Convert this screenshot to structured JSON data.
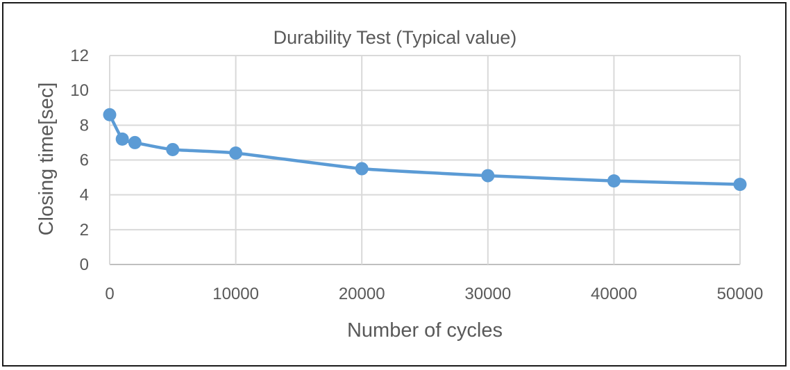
{
  "chart_data": {
    "type": "line",
    "title": "Durability Test (Typical value)",
    "xlabel": "Number of cycles",
    "ylabel": "Closing time[sec]",
    "xlim": [
      0,
      50000
    ],
    "ylim": [
      0,
      12
    ],
    "x_ticks": [
      0,
      10000,
      20000,
      30000,
      40000,
      50000
    ],
    "x_tick_labels": [
      "0",
      "10000",
      "20000",
      "30000",
      "40000",
      "50000"
    ],
    "y_ticks": [
      0,
      2,
      4,
      6,
      8,
      10,
      12
    ],
    "y_tick_labels": [
      "0",
      "2",
      "4",
      "6",
      "8",
      "10",
      "12"
    ],
    "grid": true,
    "legend": "none",
    "series": [
      {
        "color": "#5b9bd5",
        "smooth": true,
        "markers": true,
        "x": [
          0,
          1000,
          2000,
          5000,
          10000,
          20000,
          30000,
          40000,
          50000
        ],
        "y": [
          8.6,
          7.2,
          7.0,
          6.6,
          6.4,
          5.5,
          5.1,
          4.8,
          4.6
        ]
      }
    ]
  }
}
